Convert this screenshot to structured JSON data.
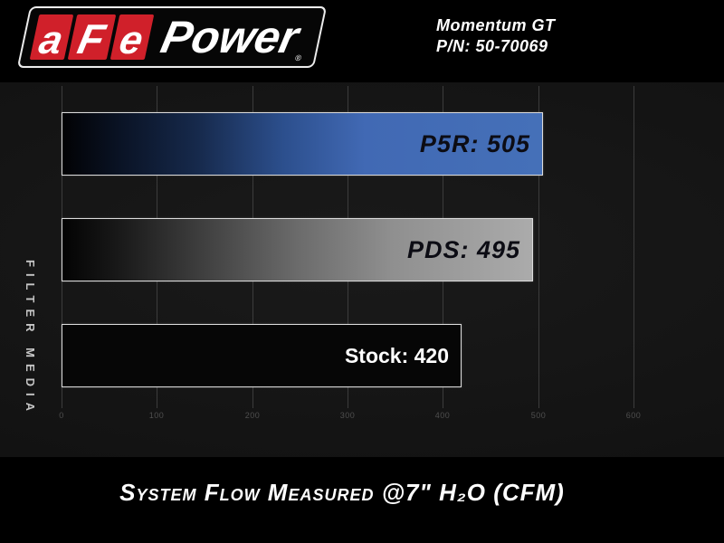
{
  "header": {
    "brand": {
      "letters": [
        "a",
        "Fe"
      ],
      "letter_a": "a",
      "letter_f": "F",
      "letter_e": "e",
      "power": "Power",
      "registered": "®"
    },
    "product": {
      "line1": "Momentum GT",
      "line2": "P/N: 50-70069"
    }
  },
  "chart_data": {
    "type": "bar",
    "orientation": "horizontal",
    "categories": [
      "P5R",
      "PDS",
      "Stock"
    ],
    "values": [
      505,
      495,
      420
    ],
    "bar_labels": [
      "P5R: 505",
      "PDS: 495",
      "Stock: 420"
    ],
    "bar_styles": [
      "blue-gradient",
      "silver-gradient",
      "black"
    ],
    "bar_label_tones": [
      "dark",
      "dark",
      "light"
    ],
    "xticks": [
      0,
      100,
      200,
      300,
      400,
      500,
      600
    ],
    "xlim": [
      0,
      695
    ],
    "xlabel": "System Flow Measured @7\" H₂O (CFM)",
    "ylabel": "FILTER MEDIA",
    "grid": true,
    "legend": false,
    "title": ""
  },
  "colors": {
    "page_bg": "#000000",
    "chart_bg": "#151515",
    "brand_red": "#d0202a",
    "accent_blue": "#4570b8",
    "silver": "#ababab",
    "gridline": "#3c3c3c",
    "tick_text": "#4f4f4f",
    "axis_label_text": "#c6c6c6",
    "bar_border": "#dcdcdc"
  }
}
